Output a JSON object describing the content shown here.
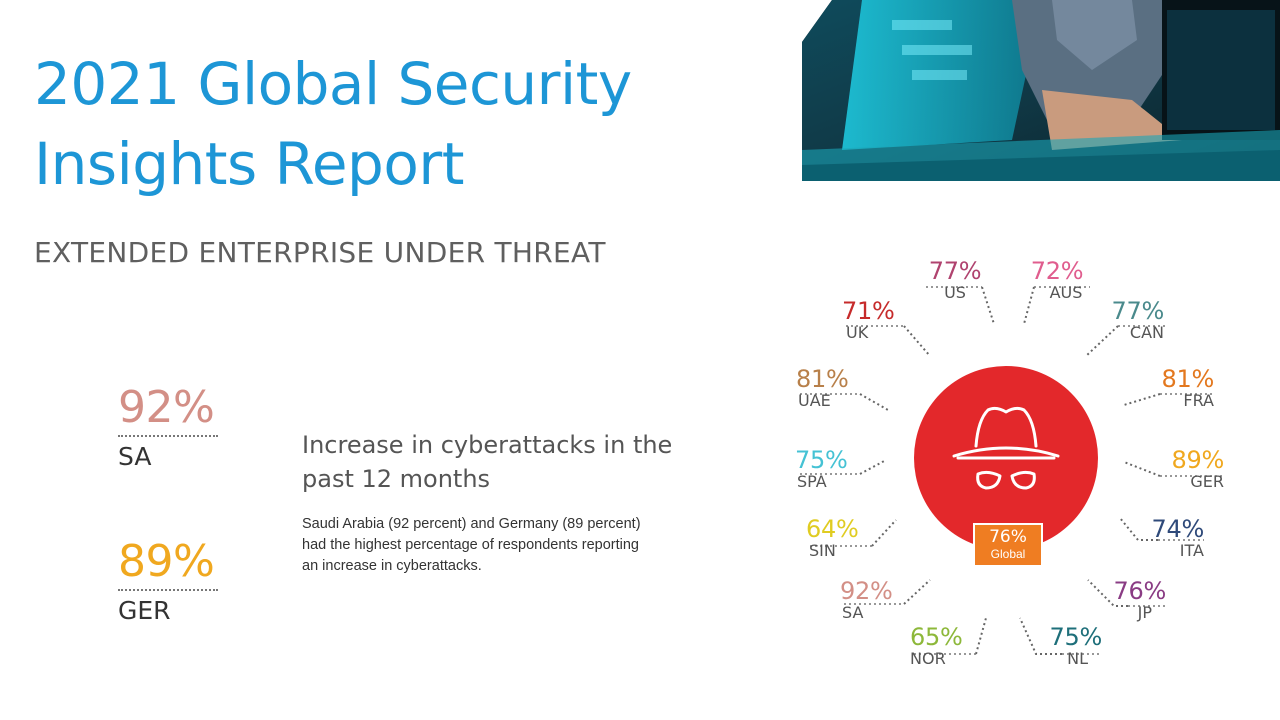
{
  "title": {
    "line1": "2021 Global Security",
    "line2": "Insights Report"
  },
  "subtitle": "EXTENDED ENTERPRISE UNDER THREAT",
  "highlights": [
    {
      "value": "92%",
      "code": "SA",
      "color": "#d38f86"
    },
    {
      "value": "89%",
      "code": "GER",
      "color": "#f0a81f"
    }
  ],
  "headline": "Increase in cyberattacks in the past 12 months",
  "body": {
    "line1": "Saudi Arabia (92 percent) and Germany (89 percent)",
    "line2": "had the highest percentage of respondents reporting",
    "line3": "an increase in cyberattacks."
  },
  "global": {
    "value": "76%",
    "label": "Global",
    "color": "#ef7d22"
  },
  "hub_icon": "hacker-icon",
  "countries": [
    {
      "code": "US",
      "value": "77%",
      "color": "#b0436f"
    },
    {
      "code": "AUS",
      "value": "72%",
      "color": "#e05d8e"
    },
    {
      "code": "CAN",
      "value": "77%",
      "color": "#4a8a8c"
    },
    {
      "code": "FRA",
      "value": "81%",
      "color": "#e3781f"
    },
    {
      "code": "GER",
      "value": "89%",
      "color": "#f0a81f"
    },
    {
      "code": "ITA",
      "value": "74%",
      "color": "#2f4a7a"
    },
    {
      "code": "JP",
      "value": "76%",
      "color": "#8a3c84"
    },
    {
      "code": "NL",
      "value": "75%",
      "color": "#1e6f7a"
    },
    {
      "code": "NOR",
      "value": "65%",
      "color": "#8db83a"
    },
    {
      "code": "SA",
      "value": "92%",
      "color": "#d38f86"
    },
    {
      "code": "SIN",
      "value": "64%",
      "color": "#e0cc22"
    },
    {
      "code": "SPA",
      "value": "75%",
      "color": "#45c2d4"
    },
    {
      "code": "UAE",
      "value": "81%",
      "color": "#b8804a"
    },
    {
      "code": "UK",
      "value": "71%",
      "color": "#c62b2b"
    }
  ]
}
